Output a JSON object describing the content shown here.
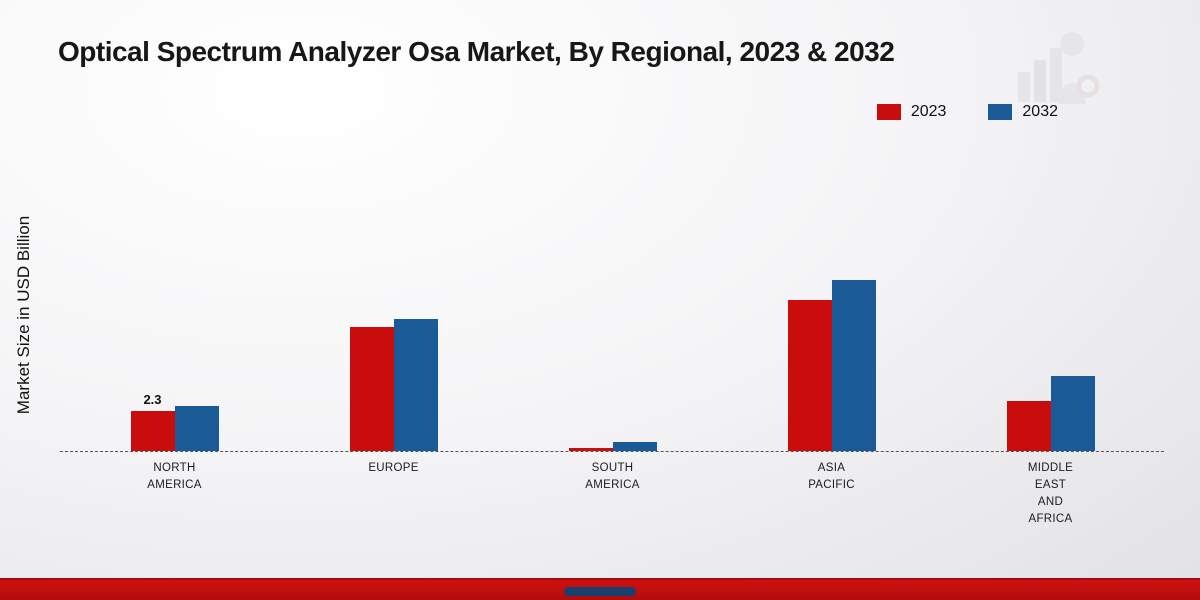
{
  "title": "Optical Spectrum Analyzer Osa Market, By Regional, 2023 & 2032",
  "y_axis_label": "Market Size in USD Billion",
  "legend": {
    "items": [
      {
        "label": "2023",
        "color": "#c90d0d"
      },
      {
        "label": "2032",
        "color": "#1a5a96"
      }
    ]
  },
  "footer": {
    "band_color": "#cf1010"
  },
  "chart_data": {
    "type": "bar",
    "title": "Optical Spectrum Analyzer Osa Market, By Regional, 2023 & 2032",
    "ylabel": "Market Size in USD Billion",
    "xlabel": "",
    "categories": [
      "NORTH AMERICA",
      "EUROPE",
      "SOUTH AMERICA",
      "ASIA PACIFIC",
      "MIDDLE EAST AND AFRICA"
    ],
    "category_label_lines": [
      [
        "NORTH",
        "AMERICA"
      ],
      [
        "EUROPE"
      ],
      [
        "SOUTH",
        "AMERICA"
      ],
      [
        "ASIA",
        "PACIFIC"
      ],
      [
        "MIDDLE",
        "EAST",
        "AND",
        "AFRICA"
      ]
    ],
    "series": [
      {
        "name": "2023",
        "color": "#c90d0d",
        "values": [
          2.3,
          7.1,
          0.2,
          8.7,
          2.9
        ]
      },
      {
        "name": "2032",
        "color": "#1a5a96",
        "values": [
          2.6,
          7.6,
          0.5,
          9.8,
          4.3
        ]
      }
    ],
    "annotations": [
      {
        "category_index": 0,
        "series_index": 0,
        "text": "2.3"
      }
    ],
    "ylim": [
      0,
      10.5
    ],
    "grid": false,
    "baseline_style": "dashed",
    "legend_position": "top-right"
  }
}
